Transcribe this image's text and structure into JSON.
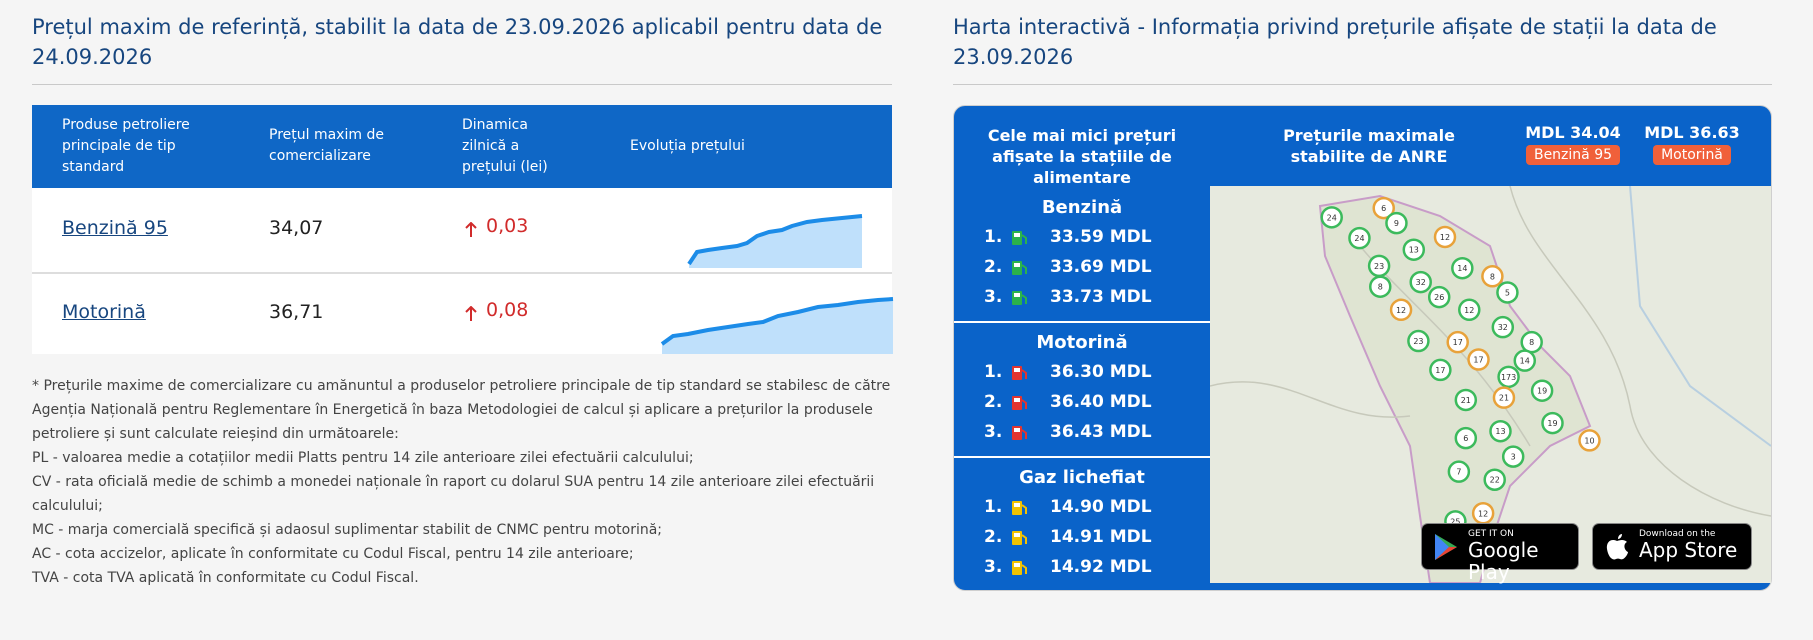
{
  "left": {
    "title": "Prețul maxim de referință, stabilit la data de 23.09.2026 aplicabil pentru data de 24.09.2026",
    "table": {
      "headers": [
        "Produse petroliere principale de tip standard",
        "Prețul maxim de comercializare",
        "Dinamica zilnică a prețului (lei)",
        "Evoluția prețului"
      ],
      "rows": [
        {
          "product": "Benzină 95",
          "price": "34,07",
          "change": "0,03"
        },
        {
          "product": "Motorină",
          "price": "36,71",
          "change": "0,08"
        }
      ]
    },
    "footnote": [
      "* Prețurile maxime de comercializare cu amănuntul a produselor petroliere principale de tip standard se stabilesc de către",
      "Agenția Națională pentru Reglementare în Energetică în baza Metodologiei de calcul și aplicare a prețurilor la produsele",
      "petroliere și sunt calculate reieșind din următoarele:",
      "PL - valoarea medie a cotațiilor medii Platts pentru 14 zile anterioare zilei efectuării calculului;",
      "CV - rata oficială medie de schimb a monedei naționale în raport cu dolarul SUA pentru 14 zile anterioare zilei efectuării",
      "calculului;",
      "MC - marja comercială specifică și adaosul suplimentar stabilit de CNMC pentru motorină;",
      "AC - cota accizelor, aplicate în conformitate cu Codul Fiscal, pentru 14 zile anterioare;",
      "TVA - cota TVA aplicată în conformitate cu Codul Fiscal."
    ]
  },
  "right": {
    "title": "Harta interactivă - Informația privind prețurile afișate de stații la data de 23.09.2026",
    "header": {
      "lowest": "Cele mai mici prețuri afișate la stațiile de alimentare",
      "anre": "Prețurile maximale stabilite de ANRE",
      "prices": [
        {
          "value": "MDL 34.04",
          "label": "Benzină 95"
        },
        {
          "value": "MDL 36.63",
          "label": "Motorină"
        }
      ]
    },
    "groups": [
      {
        "name": "Benzină",
        "items": [
          {
            "rank": "1.",
            "price": "33.59 MDL"
          },
          {
            "rank": "2.",
            "price": "33.69 MDL"
          },
          {
            "rank": "3.",
            "price": "33.73 MDL"
          }
        ]
      },
      {
        "name": "Motorină",
        "items": [
          {
            "rank": "1.",
            "price": "36.30 MDL"
          },
          {
            "rank": "2.",
            "price": "36.40 MDL"
          },
          {
            "rank": "3.",
            "price": "36.43 MDL"
          }
        ]
      },
      {
        "name": "Gaz lichefiat",
        "items": [
          {
            "rank": "1.",
            "price": "14.90 MDL"
          },
          {
            "rank": "2.",
            "price": "14.91 MDL"
          },
          {
            "rank": "3.",
            "price": "14.92 MDL"
          }
        ]
      }
    ],
    "map": {
      "markers": [
        24,
        6,
        9,
        24,
        13,
        12,
        23,
        14,
        32,
        8,
        8,
        26,
        5,
        12,
        12,
        32,
        23,
        17,
        8,
        14,
        17,
        17,
        173,
        19,
        21,
        21,
        19,
        6,
        13,
        10,
        3,
        7,
        22,
        12,
        25
      ],
      "stores": [
        {
          "small": "GET IT ON",
          "big": "Google Play"
        },
        {
          "small": "Download on the",
          "big": "App Store"
        }
      ]
    }
  }
}
